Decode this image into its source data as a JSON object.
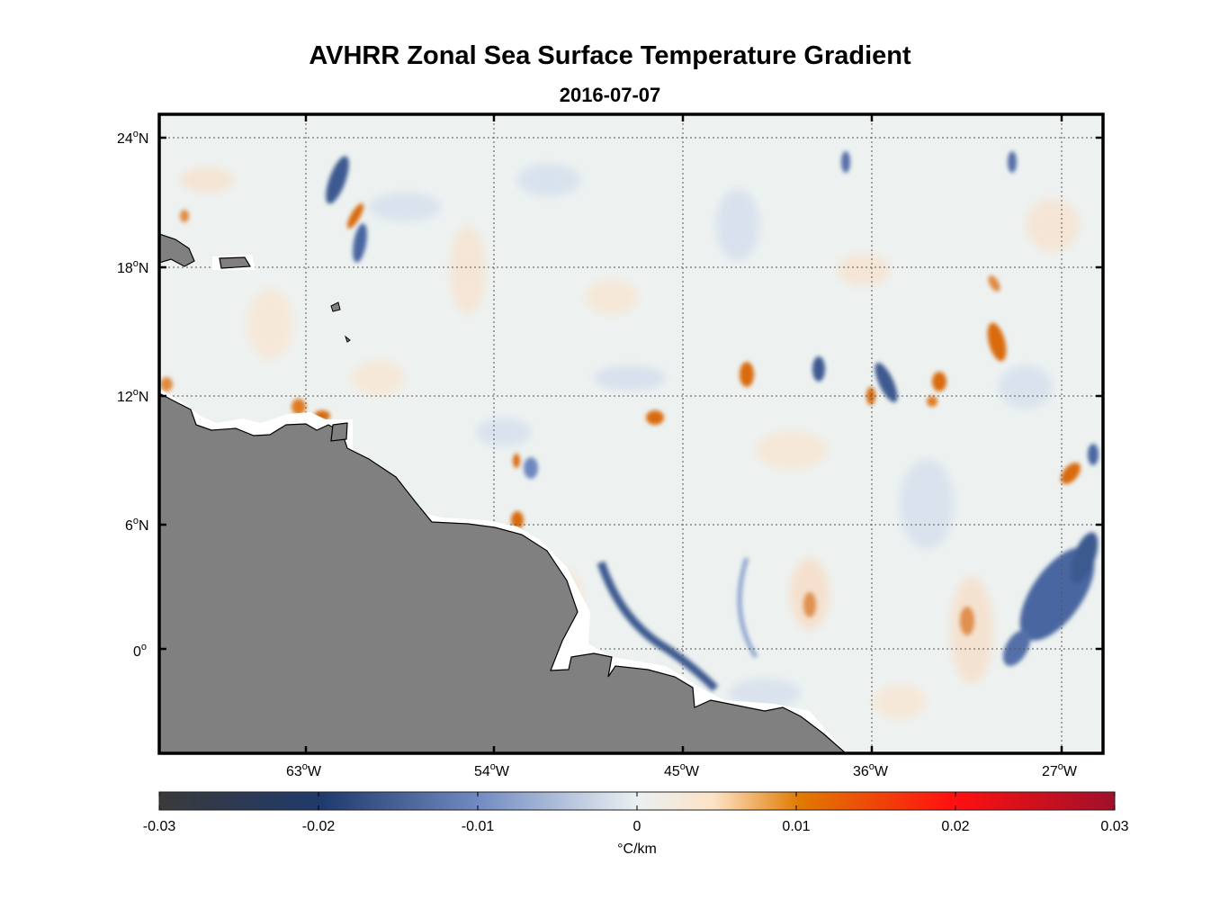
{
  "map": {
    "title": "AVHRR Zonal Sea Surface Temperature Gradient",
    "subtitle": "2016-07-07",
    "lat_ticks": [
      {
        "value": 24,
        "label": "24",
        "hemi": "N"
      },
      {
        "value": 18,
        "label": "18",
        "hemi": "N"
      },
      {
        "value": 12,
        "label": "12",
        "hemi": "N"
      },
      {
        "value": 6,
        "label": "6",
        "hemi": "N"
      },
      {
        "value": 0,
        "label": "0",
        "hemi": ""
      }
    ],
    "lon_ticks": [
      {
        "value": -63,
        "label": "63",
        "hemi": "W"
      },
      {
        "value": -54,
        "label": "54",
        "hemi": "W"
      },
      {
        "value": -45,
        "label": "45",
        "hemi": "W"
      },
      {
        "value": -36,
        "label": "36",
        "hemi": "W"
      },
      {
        "value": -27,
        "label": "27",
        "hemi": "W"
      }
    ],
    "extent": {
      "lon_min": -70,
      "lon_max": -25,
      "lat_min": -4.8,
      "lat_max": 25
    },
    "colors": {
      "land": "#808080",
      "frame": "#000000",
      "grid": "#555555"
    }
  },
  "colorbar": {
    "ticks": [
      "-0.03",
      "-0.02",
      "-0.01",
      "0",
      "0.01",
      "0.02",
      "0.03"
    ],
    "units": "°C/km",
    "range": [
      -0.03,
      0.03
    ],
    "stops": [
      "#3a3a3a",
      "#1f3a6c",
      "#6f88c0",
      "#eaf0f2",
      "#fde3c6",
      "#e07a00",
      "#ff1010",
      "#a0102a"
    ]
  }
}
